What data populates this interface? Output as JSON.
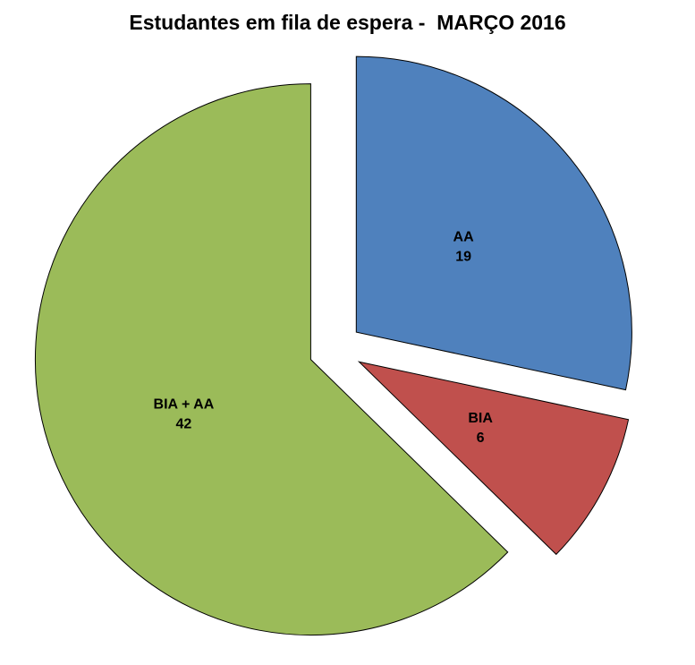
{
  "chart_data": {
    "type": "pie",
    "title": "Estudantes em fila de espera -  MARÇO 2016",
    "categories": [
      "AA",
      "BIA",
      "BIA + AA"
    ],
    "values": [
      19,
      6,
      42
    ],
    "colors": [
      "#4f81bd",
      "#c0504d",
      "#9bbb59"
    ],
    "stroke_color": "#000000",
    "start_angle": "12 o'clock",
    "direction": "clockwise",
    "exploded": true,
    "legend_position": "none",
    "slice_labels": [
      {
        "name": "AA",
        "value": "19"
      },
      {
        "name": "BIA",
        "value": "6"
      },
      {
        "name": "BIA + AA",
        "value": "42"
      }
    ]
  }
}
